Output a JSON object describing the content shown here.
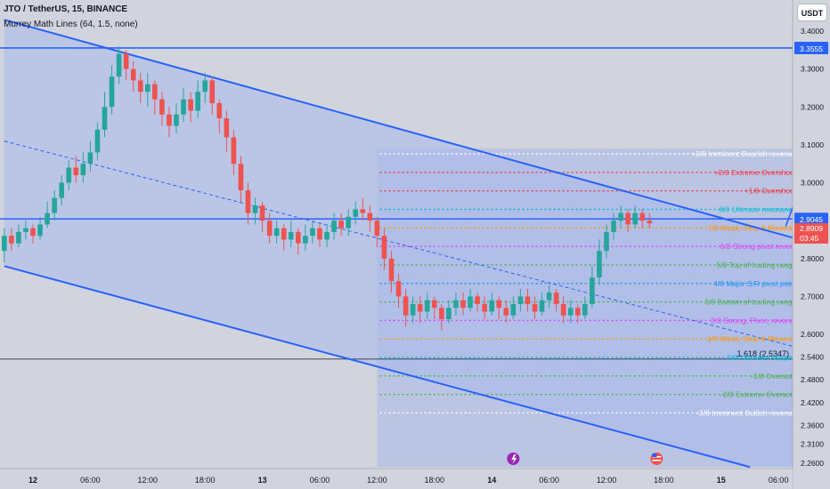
{
  "header": {
    "symbol": "JTO / TetherUS, 15, BINANCE",
    "indicator": "Murrey Math Lines (64, 1.5, none)",
    "currency": "USDT"
  },
  "colors": {
    "background": "#d1d4dc",
    "channel_fill": "#b8c4e8",
    "channel_line": "#2962ff",
    "candle_up": "#26a69a",
    "candle_down": "#ef5350"
  },
  "chart_data": {
    "type": "candlestick",
    "symbol": "JTO / TetherUS",
    "interval": "15",
    "exchange": "BINANCE",
    "y_axis": {
      "range": [
        2.25,
        3.42
      ],
      "ticks": [
        "3.4000",
        "3.3000",
        "3.2000",
        "3.1000",
        "3.0000",
        "2.9000",
        "2.8000",
        "2.7000",
        "2.6000",
        "2.5400",
        "2.4800",
        "2.4200",
        "2.3600",
        "2.3100",
        "2.2600"
      ]
    },
    "x_axis": {
      "ticks": [
        "12",
        "06:00",
        "12:00",
        "18:00",
        "13",
        "06:00",
        "12:00",
        "18:00",
        "14",
        "06:00",
        "12:00",
        "18:00",
        "15",
        "06:00"
      ]
    },
    "price_labels": [
      {
        "value": 3.3555,
        "text": "3.3555",
        "color": "#2962ff"
      },
      {
        "value": 2.9045,
        "text": "2.9045",
        "color": "#2962ff"
      },
      {
        "value": 2.8909,
        "text": "2.8909",
        "color": "#ef5350"
      },
      {
        "value": 2.8909,
        "text": "03:45",
        "color": "#ef5350"
      }
    ],
    "horizontal_lines": [
      {
        "value": 3.3555,
        "color": "#2962ff"
      },
      {
        "value": 2.9045,
        "color": "#2962ff"
      },
      {
        "value": 2.5347,
        "color": "#131722",
        "label": "1.618 (2.5347)"
      }
    ],
    "murrey_levels": [
      {
        "label": "+3/8 Imminent Bearish reversal -- 3.0762",
        "value": 3.0762,
        "color": "#ffffff"
      },
      {
        "label": "+2/8 Extreme Overshoot -- 3.0273",
        "value": 3.0273,
        "color": "#f23645"
      },
      {
        "label": "+1/8 Overshoot -- 2.9785",
        "value": 2.9785,
        "color": "#f23645"
      },
      {
        "label": "8/8 Ultimate resistance -- 2.9297",
        "value": 2.9297,
        "color": "#00bcd4"
      },
      {
        "label": "7/8 Weak, Stop & Reverse -- 2.8809",
        "value": 2.8809,
        "color": "#ff9800"
      },
      {
        "label": "6/8 Strong pivot reverse -- 2.832",
        "value": 2.832,
        "color": "#e040fb"
      },
      {
        "label": "5/8 Top of trading range -- 2.7832",
        "value": 2.7832,
        "color": "#4caf50"
      },
      {
        "label": "4/8 Major S/R pivot point -- 2.7344",
        "value": 2.7344,
        "color": "#2196f3"
      },
      {
        "label": "3/8 Bottom of trading range -- 2.6855",
        "value": 2.6855,
        "color": "#4caf50"
      },
      {
        "label": "2/8 Strong, Pivot, reverse -- 2.6367",
        "value": 2.6367,
        "color": "#e040fb"
      },
      {
        "label": "1/8 Weak, Stop & Reverse -- 2.5879",
        "value": 2.5879,
        "color": "#ff9800"
      },
      {
        "label": "0/8 Ultimate Support -- 2.5391",
        "value": 2.5391,
        "color": "#00bcd4"
      },
      {
        "label": "-1/8 Oversold -- 2.4902",
        "value": 2.4902,
        "color": "#4caf50"
      },
      {
        "label": "-2/8 Extreme Oversold -- 2.4414",
        "value": 2.4414,
        "color": "#4caf50"
      },
      {
        "label": "-3/8 Imminent Bullish reversal -- 2.3926",
        "value": 2.3926,
        "color": "#ffffff"
      }
    ],
    "channel": {
      "upper": [
        [
          -2,
          3.43
        ],
        [
          64,
          2.74
        ]
      ],
      "middle": [
        [
          -2,
          3.11
        ],
        [
          64,
          2.46
        ]
      ],
      "lower": [
        [
          -2,
          2.78
        ],
        [
          50,
          2.25
        ]
      ]
    },
    "projection_arrow": [
      [
        52.5,
        2.885
      ],
      [
        56,
        3.29
      ]
    ],
    "candles": [
      [
        -2,
        2.82,
        2.86,
        2.88,
        2.79
      ],
      [
        -1.5,
        2.86,
        2.84,
        2.88,
        2.82
      ],
      [
        -1,
        2.84,
        2.87,
        2.89,
        2.83
      ],
      [
        -0.5,
        2.87,
        2.88,
        2.9,
        2.85
      ],
      [
        0,
        2.88,
        2.86,
        2.89,
        2.84
      ],
      [
        0.5,
        2.86,
        2.89,
        2.91,
        2.85
      ],
      [
        1,
        2.89,
        2.92,
        2.95,
        2.88
      ],
      [
        1.5,
        2.92,
        2.96,
        2.98,
        2.9
      ],
      [
        2,
        2.96,
        3,
        3.02,
        2.94
      ],
      [
        2.5,
        3,
        3.04,
        3.06,
        2.98
      ],
      [
        3,
        3.04,
        3.02,
        3.07,
        3
      ],
      [
        3.5,
        3.02,
        3.05,
        3.08,
        3
      ],
      [
        4,
        3.05,
        3.08,
        3.11,
        3.03
      ],
      [
        4.5,
        3.08,
        3.14,
        3.16,
        3.06
      ],
      [
        5,
        3.14,
        3.2,
        3.24,
        3.12
      ],
      [
        5.5,
        3.2,
        3.28,
        3.31,
        3.18
      ],
      [
        6,
        3.28,
        3.34,
        3.36,
        3.26
      ],
      [
        6.5,
        3.34,
        3.3,
        3.35,
        3.27
      ],
      [
        7,
        3.3,
        3.27,
        3.32,
        3.24
      ],
      [
        7.5,
        3.27,
        3.24,
        3.29,
        3.21
      ],
      [
        8,
        3.24,
        3.26,
        3.29,
        3.2
      ],
      [
        8.5,
        3.26,
        3.22,
        3.27,
        3.18
      ],
      [
        9,
        3.22,
        3.18,
        3.24,
        3.15
      ],
      [
        9.5,
        3.18,
        3.15,
        3.2,
        3.12
      ],
      [
        10,
        3.15,
        3.18,
        3.21,
        3.13
      ],
      [
        10.5,
        3.18,
        3.22,
        3.25,
        3.16
      ],
      [
        11,
        3.22,
        3.19,
        3.24,
        3.16
      ],
      [
        11.5,
        3.19,
        3.24,
        3.27,
        3.17
      ],
      [
        12,
        3.24,
        3.27,
        3.29,
        3.21
      ],
      [
        12.5,
        3.27,
        3.21,
        3.28,
        3.18
      ],
      [
        13,
        3.21,
        3.17,
        3.22,
        3.13
      ],
      [
        13.5,
        3.17,
        3.12,
        3.19,
        3.08
      ],
      [
        14,
        3.12,
        3.05,
        3.14,
        3.02
      ],
      [
        14.5,
        3.05,
        2.98,
        3.07,
        2.95
      ],
      [
        15,
        2.98,
        2.92,
        3,
        2.89
      ],
      [
        15.5,
        2.92,
        2.94,
        2.96,
        2.89
      ],
      [
        16,
        2.94,
        2.9,
        2.95,
        2.87
      ],
      [
        16.5,
        2.9,
        2.86,
        2.92,
        2.84
      ],
      [
        17,
        2.86,
        2.88,
        2.9,
        2.84
      ],
      [
        17.5,
        2.88,
        2.85,
        2.89,
        2.82
      ],
      [
        18,
        2.85,
        2.87,
        2.9,
        2.83
      ],
      [
        18.5,
        2.87,
        2.84,
        2.88,
        2.81
      ],
      [
        19,
        2.84,
        2.86,
        2.89,
        2.82
      ],
      [
        19.5,
        2.86,
        2.88,
        2.9,
        2.84
      ],
      [
        20,
        2.88,
        2.85,
        2.89,
        2.83
      ],
      [
        20.5,
        2.85,
        2.87,
        2.89,
        2.83
      ],
      [
        21,
        2.87,
        2.9,
        2.92,
        2.85
      ],
      [
        21.5,
        2.9,
        2.88,
        2.92,
        2.86
      ],
      [
        22,
        2.88,
        2.91,
        2.93,
        2.86
      ],
      [
        22.5,
        2.91,
        2.93,
        2.95,
        2.89
      ],
      [
        23,
        2.93,
        2.92,
        2.96,
        2.9
      ],
      [
        23.5,
        2.92,
        2.9,
        2.94,
        2.87
      ],
      [
        24,
        2.9,
        2.86,
        2.91,
        2.83
      ],
      [
        24.5,
        2.86,
        2.8,
        2.88,
        2.77
      ],
      [
        25,
        2.8,
        2.74,
        2.82,
        2.71
      ],
      [
        25.5,
        2.74,
        2.7,
        2.76,
        2.67
      ],
      [
        26,
        2.7,
        2.65,
        2.72,
        2.62
      ],
      [
        26.5,
        2.65,
        2.68,
        2.7,
        2.63
      ],
      [
        27,
        2.68,
        2.66,
        2.7,
        2.63
      ],
      [
        27.5,
        2.66,
        2.69,
        2.71,
        2.64
      ],
      [
        28,
        2.69,
        2.67,
        2.7,
        2.64
      ],
      [
        28.5,
        2.67,
        2.64,
        2.68,
        2.61
      ],
      [
        29,
        2.64,
        2.67,
        2.69,
        2.63
      ],
      [
        29.5,
        2.67,
        2.69,
        2.71,
        2.65
      ],
      [
        30,
        2.69,
        2.67,
        2.71,
        2.65
      ],
      [
        30.5,
        2.67,
        2.7,
        2.72,
        2.66
      ],
      [
        31,
        2.7,
        2.68,
        2.71,
        2.66
      ],
      [
        31.5,
        2.68,
        2.66,
        2.7,
        2.64
      ],
      [
        32,
        2.66,
        2.69,
        2.71,
        2.65
      ],
      [
        32.5,
        2.69,
        2.67,
        2.7,
        2.64
      ],
      [
        33,
        2.67,
        2.65,
        2.69,
        2.63
      ],
      [
        33.5,
        2.65,
        2.68,
        2.7,
        2.64
      ],
      [
        34,
        2.68,
        2.7,
        2.72,
        2.66
      ],
      [
        34.5,
        2.7,
        2.68,
        2.72,
        2.66
      ],
      [
        35,
        2.68,
        2.66,
        2.7,
        2.64
      ],
      [
        35.5,
        2.66,
        2.69,
        2.71,
        2.65
      ],
      [
        36,
        2.69,
        2.71,
        2.73,
        2.67
      ],
      [
        36.5,
        2.71,
        2.68,
        2.72,
        2.66
      ],
      [
        37,
        2.68,
        2.65,
        2.7,
        2.63
      ],
      [
        37.5,
        2.65,
        2.67,
        2.69,
        2.63
      ],
      [
        38,
        2.67,
        2.65,
        2.68,
        2.63
      ],
      [
        38.5,
        2.65,
        2.68,
        2.7,
        2.64
      ],
      [
        39,
        2.68,
        2.75,
        2.78,
        2.67
      ],
      [
        39.5,
        2.75,
        2.82,
        2.85,
        2.73
      ],
      [
        40,
        2.82,
        2.87,
        2.89,
        2.8
      ],
      [
        40.5,
        2.87,
        2.9,
        2.92,
        2.85
      ],
      [
        41,
        2.9,
        2.92,
        2.94,
        2.88
      ],
      [
        41.5,
        2.92,
        2.89,
        2.93,
        2.87
      ],
      [
        42,
        2.89,
        2.92,
        2.94,
        2.88
      ],
      [
        42.5,
        2.92,
        2.9,
        2.93,
        2.88
      ],
      [
        43,
        2.9,
        2.893,
        2.92,
        2.88
      ]
    ]
  }
}
